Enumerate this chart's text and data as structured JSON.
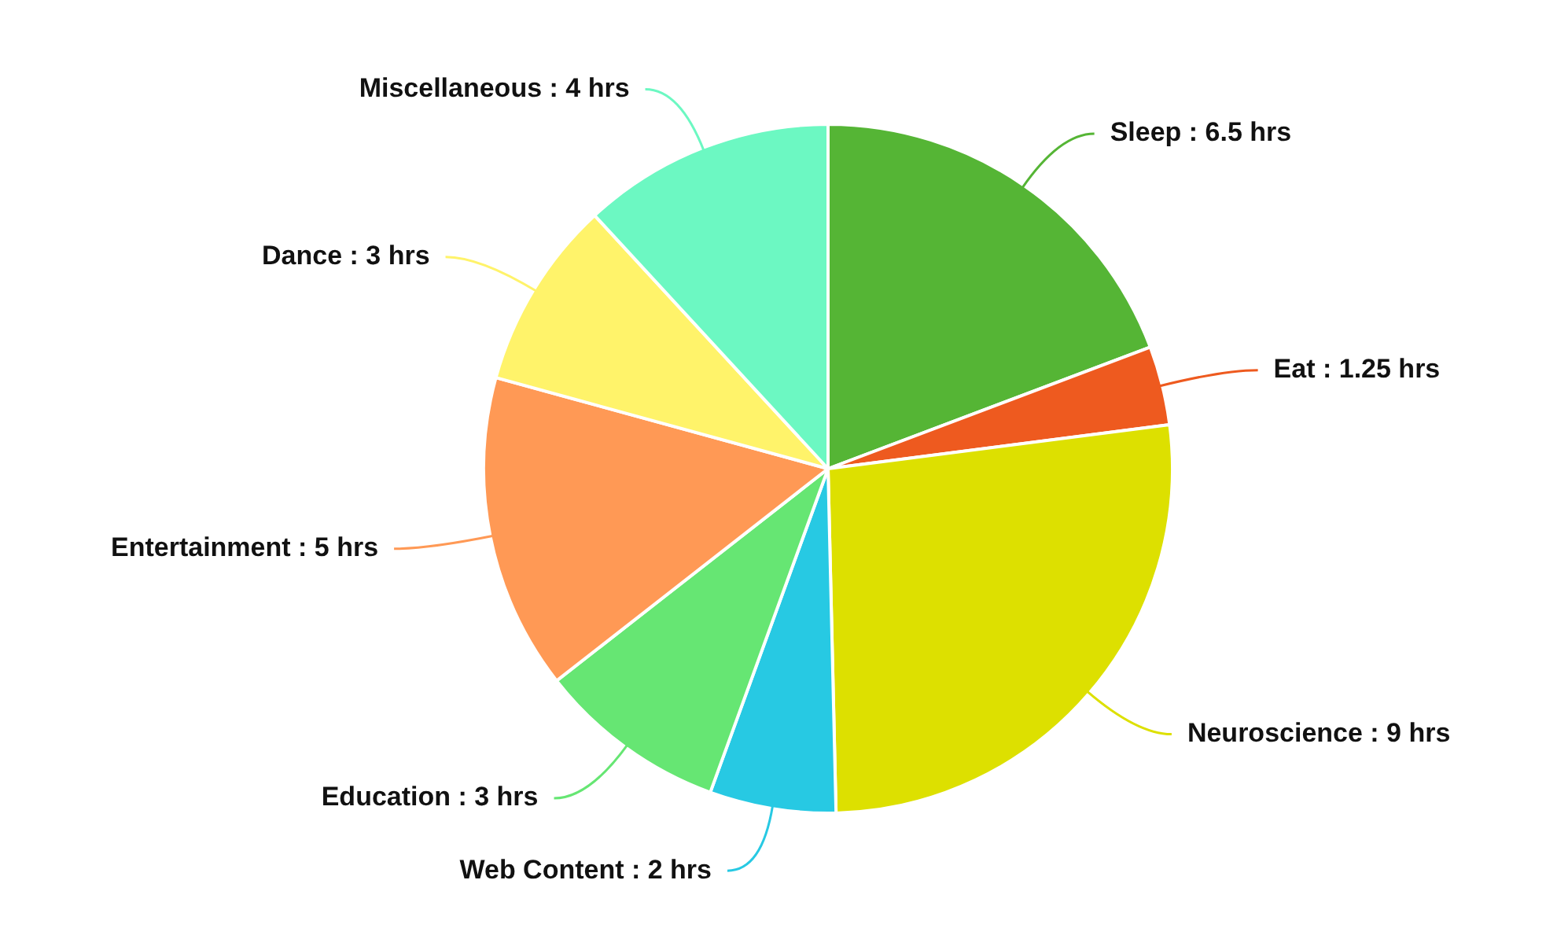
{
  "chart_data": {
    "type": "pie",
    "categories": [
      "Sleep",
      "Eat",
      "Neuroscience",
      "Web Content",
      "Education",
      "Entertainment",
      "Dance",
      "Miscellaneous"
    ],
    "values": [
      6.5,
      1.25,
      9,
      2,
      3,
      5,
      3,
      4
    ],
    "value_labels": [
      "6.5 hrs",
      "1.25 hrs",
      "9 hrs",
      "2 hrs",
      "3 hrs",
      "5 hrs",
      "3 hrs",
      "4 hrs"
    ],
    "colors": [
      "#55b535",
      "#ee5a1f",
      "#dde000",
      "#27c9e3",
      "#66e673",
      "#ff9955",
      "#fff36a",
      "#6cf8c2"
    ],
    "legend": false
  }
}
